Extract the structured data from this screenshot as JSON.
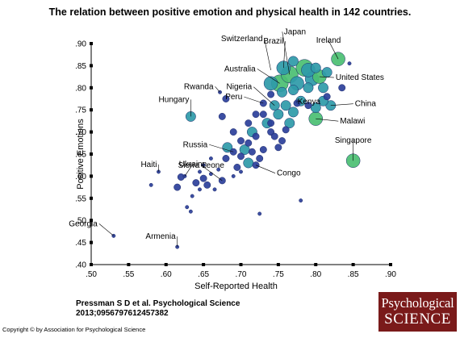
{
  "title": "The relation between positive emotion and physical health in 142 countries.",
  "citation": {
    "line1": "Pressman S D et al. Psychological Science",
    "line2": "2013;0956797612457382"
  },
  "copyright": "Copyright © by Association for Psychological Science",
  "logo": {
    "line1": "Psychological",
    "line2": "SCIENCE"
  },
  "colors": {
    "dark_blue": "#2b3f9a",
    "teal": "#2e9aa8",
    "green": "#4bbf72",
    "axis": "#000000"
  },
  "chart_data": {
    "type": "scatter",
    "title": "The relation between positive emotion and physical health in 142 countries.",
    "xlabel": "Self-Reported Health",
    "ylabel": "Positive Emotions",
    "xlim": [
      0.5,
      0.9
    ],
    "ylim": [
      0.4,
      0.9
    ],
    "xticks": [
      ".50",
      ".55",
      ".60",
      ".65",
      ".70",
      ".75",
      ".80",
      ".85",
      ".90"
    ],
    "yticks": [
      ".40",
      ".45",
      ".50",
      ".55",
      ".60",
      ".65",
      ".70",
      ".75",
      ".80",
      ".85",
      ".90"
    ],
    "grid": false,
    "legend": "none",
    "labeled_points": [
      {
        "label": "Georgia",
        "x": 0.53,
        "y": 0.465
      },
      {
        "label": "Armenia",
        "x": 0.615,
        "y": 0.44
      },
      {
        "label": "Haiti",
        "x": 0.59,
        "y": 0.61
      },
      {
        "label": "Ukraine",
        "x": 0.625,
        "y": 0.6
      },
      {
        "label": "Sierra Leone",
        "x": 0.675,
        "y": 0.59
      },
      {
        "label": "Russia",
        "x": 0.69,
        "y": 0.655
      },
      {
        "label": "Hungary",
        "x": 0.633,
        "y": 0.735
      },
      {
        "label": "Rwanda",
        "x": 0.672,
        "y": 0.79
      },
      {
        "label": "Peru",
        "x": 0.73,
        "y": 0.765
      },
      {
        "label": "Nigeria",
        "x": 0.745,
        "y": 0.76
      },
      {
        "label": "Congo",
        "x": 0.72,
        "y": 0.625
      },
      {
        "label": "Switzerland",
        "x": 0.74,
        "y": 0.84
      },
      {
        "label": "Brazil",
        "x": 0.757,
        "y": 0.845
      },
      {
        "label": "Japan",
        "x": 0.765,
        "y": 0.83
      },
      {
        "label": "Australia",
        "x": 0.752,
        "y": 0.81
      },
      {
        "label": "Ireland",
        "x": 0.83,
        "y": 0.865
      },
      {
        "label": "United States",
        "x": 0.805,
        "y": 0.825
      },
      {
        "label": "Kenya",
        "x": 0.78,
        "y": 0.77
      },
      {
        "label": "China",
        "x": 0.82,
        "y": 0.76
      },
      {
        "label": "Malawi",
        "x": 0.8,
        "y": 0.73
      },
      {
        "label": "Singapore",
        "x": 0.85,
        "y": 0.635
      }
    ],
    "points": [
      {
        "x": 0.53,
        "y": 0.465,
        "s": 1,
        "c": "dark_blue"
      },
      {
        "x": 0.615,
        "y": 0.44,
        "s": 1,
        "c": "dark_blue"
      },
      {
        "x": 0.58,
        "y": 0.58,
        "s": 1,
        "c": "dark_blue"
      },
      {
        "x": 0.59,
        "y": 0.61,
        "s": 1,
        "c": "dark_blue"
      },
      {
        "x": 0.615,
        "y": 0.575,
        "s": 2,
        "c": "dark_blue"
      },
      {
        "x": 0.62,
        "y": 0.598,
        "s": 2,
        "c": "dark_blue"
      },
      {
        "x": 0.625,
        "y": 0.6,
        "s": 1,
        "c": "dark_blue"
      },
      {
        "x": 0.628,
        "y": 0.53,
        "s": 1,
        "c": "dark_blue"
      },
      {
        "x": 0.633,
        "y": 0.52,
        "s": 1,
        "c": "dark_blue"
      },
      {
        "x": 0.64,
        "y": 0.585,
        "s": 2,
        "c": "dark_blue"
      },
      {
        "x": 0.645,
        "y": 0.61,
        "s": 1,
        "c": "dark_blue"
      },
      {
        "x": 0.65,
        "y": 0.595,
        "s": 2,
        "c": "dark_blue"
      },
      {
        "x": 0.655,
        "y": 0.58,
        "s": 2,
        "c": "dark_blue"
      },
      {
        "x": 0.66,
        "y": 0.605,
        "s": 1,
        "c": "dark_blue"
      },
      {
        "x": 0.665,
        "y": 0.57,
        "s": 1,
        "c": "dark_blue"
      },
      {
        "x": 0.675,
        "y": 0.59,
        "s": 2,
        "c": "dark_blue"
      },
      {
        "x": 0.68,
        "y": 0.64,
        "s": 2,
        "c": "dark_blue"
      },
      {
        "x": 0.682,
        "y": 0.665,
        "s": 3,
        "c": "teal"
      },
      {
        "x": 0.69,
        "y": 0.655,
        "s": 2,
        "c": "dark_blue"
      },
      {
        "x": 0.695,
        "y": 0.62,
        "s": 2,
        "c": "dark_blue"
      },
      {
        "x": 0.7,
        "y": 0.645,
        "s": 2,
        "c": "dark_blue"
      },
      {
        "x": 0.705,
        "y": 0.66,
        "s": 3,
        "c": "teal"
      },
      {
        "x": 0.71,
        "y": 0.63,
        "s": 3,
        "c": "teal"
      },
      {
        "x": 0.715,
        "y": 0.655,
        "s": 2,
        "c": "dark_blue"
      },
      {
        "x": 0.72,
        "y": 0.625,
        "s": 2,
        "c": "dark_blue"
      },
      {
        "x": 0.725,
        "y": 0.64,
        "s": 2,
        "c": "dark_blue"
      },
      {
        "x": 0.69,
        "y": 0.7,
        "s": 2,
        "c": "dark_blue"
      },
      {
        "x": 0.7,
        "y": 0.68,
        "s": 2,
        "c": "dark_blue"
      },
      {
        "x": 0.71,
        "y": 0.72,
        "s": 2,
        "c": "dark_blue"
      },
      {
        "x": 0.715,
        "y": 0.7,
        "s": 3,
        "c": "teal"
      },
      {
        "x": 0.72,
        "y": 0.74,
        "s": 2,
        "c": "dark_blue"
      },
      {
        "x": 0.73,
        "y": 0.765,
        "s": 2,
        "c": "dark_blue"
      },
      {
        "x": 0.735,
        "y": 0.72,
        "s": 3,
        "c": "teal"
      },
      {
        "x": 0.74,
        "y": 0.7,
        "s": 2,
        "c": "dark_blue"
      },
      {
        "x": 0.745,
        "y": 0.76,
        "s": 3,
        "c": "teal"
      },
      {
        "x": 0.75,
        "y": 0.74,
        "s": 3,
        "c": "teal"
      },
      {
        "x": 0.755,
        "y": 0.68,
        "s": 2,
        "c": "dark_blue"
      },
      {
        "x": 0.75,
        "y": 0.665,
        "s": 2,
        "c": "dark_blue"
      },
      {
        "x": 0.76,
        "y": 0.705,
        "s": 2,
        "c": "dark_blue"
      },
      {
        "x": 0.765,
        "y": 0.72,
        "s": 3,
        "c": "teal"
      },
      {
        "x": 0.77,
        "y": 0.745,
        "s": 3,
        "c": "teal"
      },
      {
        "x": 0.74,
        "y": 0.81,
        "s": 4,
        "c": "teal"
      },
      {
        "x": 0.752,
        "y": 0.81,
        "s": 5,
        "c": "green"
      },
      {
        "x": 0.757,
        "y": 0.845,
        "s": 4,
        "c": "teal"
      },
      {
        "x": 0.765,
        "y": 0.83,
        "s": 5,
        "c": "green"
      },
      {
        "x": 0.775,
        "y": 0.81,
        "s": 4,
        "c": "teal"
      },
      {
        "x": 0.78,
        "y": 0.77,
        "s": 3,
        "c": "teal"
      },
      {
        "x": 0.785,
        "y": 0.845,
        "s": 5,
        "c": "green"
      },
      {
        "x": 0.79,
        "y": 0.8,
        "s": 3,
        "c": "teal"
      },
      {
        "x": 0.795,
        "y": 0.82,
        "s": 4,
        "c": "teal"
      },
      {
        "x": 0.8,
        "y": 0.73,
        "s": 4,
        "c": "green"
      },
      {
        "x": 0.805,
        "y": 0.825,
        "s": 4,
        "c": "green"
      },
      {
        "x": 0.81,
        "y": 0.8,
        "s": 3,
        "c": "teal"
      },
      {
        "x": 0.815,
        "y": 0.78,
        "s": 2,
        "c": "dark_blue"
      },
      {
        "x": 0.82,
        "y": 0.76,
        "s": 3,
        "c": "teal"
      },
      {
        "x": 0.83,
        "y": 0.865,
        "s": 4,
        "c": "green"
      },
      {
        "x": 0.835,
        "y": 0.8,
        "s": 2,
        "c": "dark_blue"
      },
      {
        "x": 0.845,
        "y": 0.855,
        "s": 1,
        "c": "dark_blue"
      },
      {
        "x": 0.85,
        "y": 0.635,
        "s": 4,
        "c": "green"
      },
      {
        "x": 0.78,
        "y": 0.545,
        "s": 1,
        "c": "dark_blue"
      },
      {
        "x": 0.725,
        "y": 0.515,
        "s": 1,
        "c": "dark_blue"
      },
      {
        "x": 0.675,
        "y": 0.735,
        "s": 2,
        "c": "dark_blue"
      },
      {
        "x": 0.633,
        "y": 0.735,
        "s": 3,
        "c": "teal"
      },
      {
        "x": 0.672,
        "y": 0.79,
        "s": 1,
        "c": "dark_blue"
      },
      {
        "x": 0.68,
        "y": 0.775,
        "s": 2,
        "c": "dark_blue"
      },
      {
        "x": 0.76,
        "y": 0.76,
        "s": 3,
        "c": "teal"
      },
      {
        "x": 0.775,
        "y": 0.765,
        "s": 2,
        "c": "dark_blue"
      },
      {
        "x": 0.79,
        "y": 0.76,
        "s": 2,
        "c": "dark_blue"
      },
      {
        "x": 0.8,
        "y": 0.755,
        "s": 3,
        "c": "teal"
      },
      {
        "x": 0.74,
        "y": 0.785,
        "s": 2,
        "c": "dark_blue"
      },
      {
        "x": 0.755,
        "y": 0.79,
        "s": 3,
        "c": "teal"
      },
      {
        "x": 0.77,
        "y": 0.795,
        "s": 3,
        "c": "teal"
      },
      {
        "x": 0.73,
        "y": 0.74,
        "s": 2,
        "c": "dark_blue"
      },
      {
        "x": 0.72,
        "y": 0.69,
        "s": 2,
        "c": "dark_blue"
      },
      {
        "x": 0.71,
        "y": 0.675,
        "s": 2,
        "c": "dark_blue"
      },
      {
        "x": 0.74,
        "y": 0.72,
        "s": 2,
        "c": "dark_blue"
      },
      {
        "x": 0.745,
        "y": 0.69,
        "s": 2,
        "c": "dark_blue"
      },
      {
        "x": 0.73,
        "y": 0.66,
        "s": 2,
        "c": "dark_blue"
      },
      {
        "x": 0.7,
        "y": 0.61,
        "s": 1,
        "c": "dark_blue"
      },
      {
        "x": 0.66,
        "y": 0.64,
        "s": 1,
        "c": "dark_blue"
      },
      {
        "x": 0.65,
        "y": 0.625,
        "s": 1,
        "c": "dark_blue"
      },
      {
        "x": 0.67,
        "y": 0.615,
        "s": 1,
        "c": "dark_blue"
      },
      {
        "x": 0.635,
        "y": 0.555,
        "s": 1,
        "c": "dark_blue"
      },
      {
        "x": 0.645,
        "y": 0.57,
        "s": 1,
        "c": "dark_blue"
      },
      {
        "x": 0.69,
        "y": 0.6,
        "s": 1,
        "c": "dark_blue"
      },
      {
        "x": 0.8,
        "y": 0.845,
        "s": 3,
        "c": "teal"
      },
      {
        "x": 0.815,
        "y": 0.835,
        "s": 3,
        "c": "teal"
      },
      {
        "x": 0.79,
        "y": 0.84,
        "s": 4,
        "c": "teal"
      },
      {
        "x": 0.77,
        "y": 0.86,
        "s": 3,
        "c": "teal"
      },
      {
        "x": 0.81,
        "y": 0.77,
        "s": 3,
        "c": "teal"
      }
    ]
  }
}
